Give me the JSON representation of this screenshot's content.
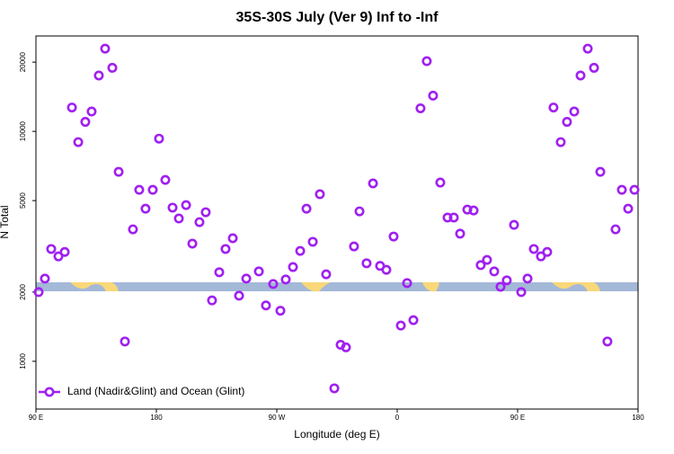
{
  "chart_data": {
    "type": "scatter",
    "title": "35S-30S July (Ver 9)   Inf to -Inf",
    "xlabel": "Longitude (deg E)",
    "ylabel": "N Total",
    "xlim": [
      90,
      540
    ],
    "xticks": [
      {
        "value": 90,
        "label": "90 E"
      },
      {
        "value": 180,
        "label": "180"
      },
      {
        "value": 270,
        "label": "90 W"
      },
      {
        "value": 360,
        "label": "0"
      },
      {
        "value": 450,
        "label": "90 E"
      },
      {
        "value": 540,
        "label": "180"
      }
    ],
    "ylim": [
      620,
      26000
    ],
    "yscale": "log",
    "yticks": [
      1000,
      2000,
      5000,
      10000,
      20000
    ],
    "legend": "bottom-left",
    "series": [
      {
        "name": "Land (Nadir&Glint) and Ocean (Glint)",
        "color": "#a020f0",
        "x": [
          92.0,
          96.7,
          101.4,
          106.8,
          111.5,
          116.9,
          121.6,
          126.9,
          131.6,
          137.0,
          141.7,
          147.1,
          151.8,
          156.5,
          162.5,
          167.2,
          171.9,
          177.3,
          182.0,
          186.7,
          192.1,
          196.8,
          202.2,
          206.9,
          212.2,
          216.9,
          221.6,
          227.0,
          231.7,
          237.1,
          241.8,
          247.2,
          256.6,
          261.9,
          267.3,
          272.7,
          276.7,
          282.1,
          287.5,
          292.2,
          296.9,
          302.2,
          306.9,
          313.0,
          317.7,
          321.7,
          327.7,
          331.8,
          337.1,
          341.9,
          347.2,
          351.9,
          357.3,
          362.7,
          367.4,
          372.1,
          377.4,
          382.1,
          386.8,
          392.2,
          397.6,
          402.3,
          407.0,
          412.4,
          417.1,
          422.4,
          427.1,
          432.5,
          437.2,
          441.9,
          447.3,
          452.7,
          457.4,
          462.1,
          467.4,
          472.1,
          476.8,
          482.2,
          486.9,
          492.3,
          497.0,
          502.4,
          507.1,
          511.8,
          517.1,
          523.2,
          527.9,
          532.6,
          537.3
        ],
        "values": [
          2000,
          2290,
          3080,
          2860,
          2990,
          12700,
          8980,
          11000,
          12200,
          17500,
          22900,
          18900,
          6670,
          1220,
          3750,
          5570,
          4610,
          5570,
          9300,
          6150,
          4660,
          4180,
          4780,
          3250,
          4030,
          4450,
          1840,
          2440,
          3080,
          3430,
          1930,
          2290,
          2460,
          1750,
          2170,
          1660,
          2270,
          2570,
          3020,
          4610,
          3310,
          5330,
          2390,
          763,
          1180,
          1150,
          3160,
          4490,
          2670,
          5940,
          2600,
          2500,
          3490,
          1430,
          2190,
          1510,
          12600,
          20200,
          14300,
          5990,
          4220,
          4220,
          3590,
          4570,
          4530,
          2620,
          2760,
          2460,
          2110,
          2250,
          3920,
          2000,
          2290,
          3080,
          2860,
          2990,
          12700,
          8980,
          11000,
          12200,
          17500,
          22900,
          18900,
          6670,
          1220,
          3750,
          5570,
          4610,
          5570
        ]
      }
    ]
  }
}
